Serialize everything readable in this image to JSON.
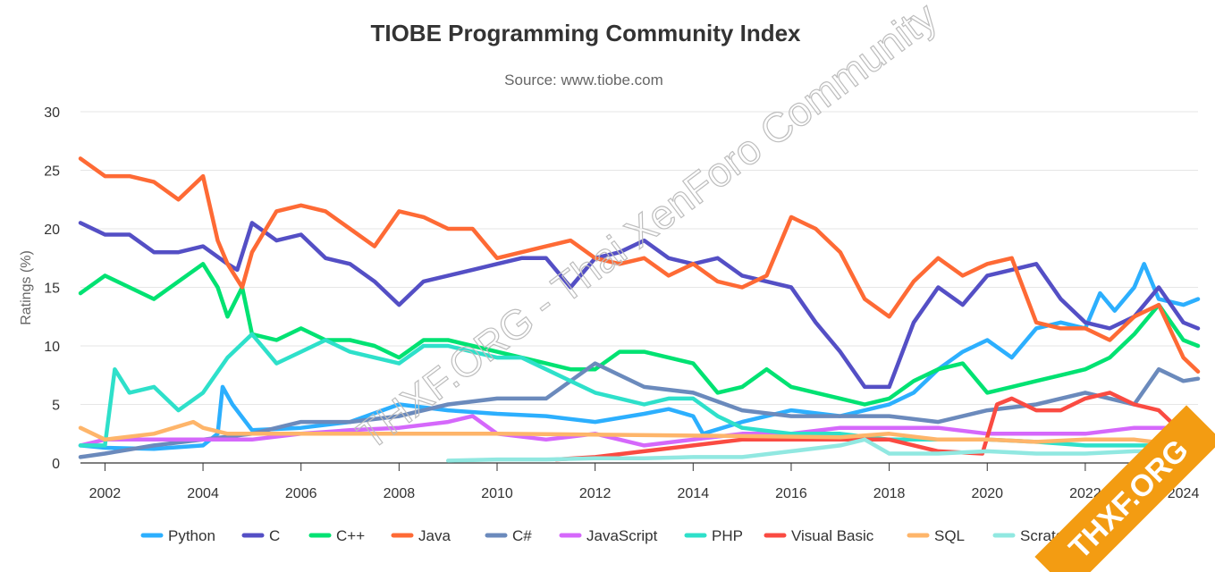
{
  "chart_data": {
    "type": "line",
    "title": "TIOBE Programming Community Index",
    "subtitle": "Source: www.tiobe.com",
    "ylabel": "Ratings (%)",
    "xlim": [
      2001.5,
      2024.3
    ],
    "ylim": [
      0,
      30
    ],
    "y_ticks": [
      0,
      5,
      10,
      15,
      20,
      25,
      30
    ],
    "x_ticks": [
      2002,
      2004,
      2006,
      2008,
      2010,
      2012,
      2014,
      2016,
      2018,
      2020,
      2022,
      2024
    ],
    "grid": true,
    "legend_position": "bottom",
    "series": [
      {
        "name": "Python",
        "color": "#2caffe",
        "x": [
          2001.5,
          2002,
          2003,
          2004,
          2004.3,
          2004.4,
          2004.6,
          2005,
          2006,
          2007,
          2008,
          2009,
          2010,
          2011,
          2012,
          2013,
          2013.5,
          2014,
          2014.2,
          2015,
          2016,
          2017,
          2017.5,
          2018,
          2018.5,
          2019,
          2019.5,
          2020,
          2020.5,
          2021,
          2021.5,
          2022,
          2022.3,
          2022.6,
          2023,
          2023.2,
          2023.5,
          2024,
          2024.3
        ],
        "y": [
          1.5,
          1.3,
          1.2,
          1.5,
          2.5,
          6.5,
          5.0,
          2.8,
          3.0,
          3.5,
          5.0,
          4.5,
          4.2,
          4.0,
          3.5,
          4.2,
          4.6,
          4.0,
          2.5,
          3.5,
          4.5,
          4.0,
          4.5,
          5.0,
          6.0,
          8.0,
          9.5,
          10.5,
          9.0,
          11.5,
          12.0,
          11.5,
          14.5,
          13.0,
          15.0,
          17.0,
          14.0,
          13.5,
          14.0
        ]
      },
      {
        "name": "C",
        "color": "#544fc5",
        "x": [
          2001.5,
          2002,
          2002.5,
          2003,
          2003.5,
          2004,
          2004.5,
          2004.7,
          2005,
          2005.5,
          2006,
          2006.5,
          2007,
          2007.5,
          2008,
          2008.5,
          2009,
          2009.5,
          2010,
          2010.5,
          2011,
          2011.5,
          2012,
          2012.5,
          2013,
          2013.5,
          2014,
          2014.5,
          2015,
          2015.5,
          2016,
          2016.5,
          2017,
          2017.5,
          2018,
          2018.5,
          2019,
          2019.5,
          2020,
          2020.5,
          2021,
          2021.5,
          2022,
          2022.5,
          2023,
          2023.5,
          2024,
          2024.3
        ],
        "y": [
          20.5,
          19.5,
          19.5,
          18.0,
          18.0,
          18.5,
          17.0,
          16.5,
          20.5,
          19.0,
          19.5,
          17.5,
          17.0,
          15.5,
          13.5,
          15.5,
          16.0,
          16.5,
          17.0,
          17.5,
          17.5,
          15.0,
          17.5,
          18.0,
          19.0,
          17.5,
          17.0,
          17.5,
          16.0,
          15.5,
          15.0,
          12.0,
          9.5,
          6.5,
          6.5,
          12.0,
          15.0,
          13.5,
          16.0,
          16.5,
          17.0,
          14.0,
          12.0,
          11.5,
          12.5,
          15.0,
          12.0,
          11.5
        ]
      },
      {
        "name": "C++",
        "color": "#00e272",
        "x": [
          2001.5,
          2002,
          2002.5,
          2003,
          2003.5,
          2004,
          2004.3,
          2004.5,
          2004.8,
          2005,
          2005.5,
          2006,
          2006.5,
          2007,
          2007.5,
          2008,
          2008.5,
          2009,
          2009.5,
          2010,
          2010.5,
          2011,
          2011.5,
          2012,
          2012.5,
          2013,
          2013.5,
          2014,
          2014.5,
          2015,
          2015.5,
          2016,
          2016.5,
          2017,
          2017.5,
          2018,
          2018.5,
          2019,
          2019.5,
          2020,
          2020.5,
          2021,
          2021.5,
          2022,
          2022.5,
          2023,
          2023.5,
          2024,
          2024.3
        ],
        "y": [
          14.5,
          16.0,
          15.0,
          14.0,
          15.5,
          17.0,
          15.0,
          12.5,
          15.0,
          11.0,
          10.5,
          11.5,
          10.5,
          10.5,
          10.0,
          9.0,
          10.5,
          10.5,
          10.0,
          9.5,
          9.0,
          8.5,
          8.0,
          8.0,
          9.5,
          9.5,
          9.0,
          8.5,
          6.0,
          6.5,
          8.0,
          6.5,
          6.0,
          5.5,
          5.0,
          5.5,
          7.0,
          8.0,
          8.5,
          6.0,
          6.5,
          7.0,
          7.5,
          8.0,
          9.0,
          11.0,
          13.5,
          10.5,
          10.0
        ]
      },
      {
        "name": "Java",
        "color": "#fe6a35",
        "x": [
          2001.5,
          2002,
          2002.5,
          2003,
          2003.5,
          2004,
          2004.3,
          2004.5,
          2004.8,
          2005,
          2005.5,
          2006,
          2006.5,
          2007,
          2007.5,
          2008,
          2008.5,
          2009,
          2009.5,
          2010,
          2010.5,
          2011,
          2011.5,
          2012,
          2012.5,
          2013,
          2013.5,
          2014,
          2014.5,
          2015,
          2015.5,
          2016,
          2016.5,
          2017,
          2017.5,
          2018,
          2018.5,
          2019,
          2019.5,
          2020,
          2020.5,
          2021,
          2021.5,
          2022,
          2022.5,
          2023,
          2023.5,
          2024,
          2024.3
        ],
        "y": [
          26.0,
          24.5,
          24.5,
          24.0,
          22.5,
          24.5,
          19.0,
          17.0,
          15.0,
          18.0,
          21.5,
          22.0,
          21.5,
          20.0,
          18.5,
          21.5,
          21.0,
          20.0,
          20.0,
          17.5,
          18.0,
          18.5,
          19.0,
          17.5,
          17.0,
          17.5,
          16.0,
          17.0,
          15.5,
          15.0,
          16.0,
          21.0,
          20.0,
          18.0,
          14.0,
          12.5,
          15.5,
          17.5,
          16.0,
          17.0,
          17.5,
          12.0,
          11.5,
          11.5,
          10.5,
          12.5,
          13.5,
          9.0,
          7.8
        ]
      },
      {
        "name": "C#",
        "color": "#6b8abc",
        "x": [
          2001.5,
          2002,
          2003,
          2004,
          2005,
          2006,
          2007,
          2008,
          2009,
          2010,
          2011,
          2011.5,
          2012,
          2013,
          2014,
          2015,
          2016,
          2017,
          2018,
          2019,
          2020,
          2021,
          2022,
          2023,
          2023.5,
          2024,
          2024.3
        ],
        "y": [
          0.5,
          0.8,
          1.5,
          2.0,
          2.5,
          3.5,
          3.5,
          4.0,
          5.0,
          5.5,
          5.5,
          7.0,
          8.5,
          6.5,
          6.0,
          4.5,
          4.0,
          4.0,
          4.0,
          3.5,
          4.5,
          5.0,
          6.0,
          5.0,
          8.0,
          7.0,
          7.2
        ]
      },
      {
        "name": "JavaScript",
        "color": "#d568fb",
        "x": [
          2001.5,
          2002,
          2003,
          2004,
          2005,
          2006,
          2007,
          2008,
          2009,
          2009.5,
          2010,
          2011,
          2012,
          2013,
          2014,
          2015,
          2016,
          2017,
          2018,
          2019,
          2020,
          2021,
          2022,
          2023,
          2024,
          2024.3
        ],
        "y": [
          1.5,
          2.0,
          2.0,
          2.0,
          2.0,
          2.5,
          2.8,
          3.0,
          3.5,
          4.0,
          2.5,
          2.0,
          2.5,
          1.5,
          2.0,
          2.5,
          2.5,
          3.0,
          3.0,
          3.0,
          2.5,
          2.5,
          2.5,
          3.0,
          3.0,
          3.2
        ]
      },
      {
        "name": "PHP",
        "color": "#2ee0ca",
        "x": [
          2001.5,
          2002,
          2002.2,
          2002.5,
          2003,
          2003.5,
          2004,
          2004.5,
          2005,
          2005.5,
          2006,
          2006.5,
          2007,
          2007.5,
          2008,
          2008.5,
          2009,
          2009.5,
          2010,
          2010.5,
          2011,
          2011.5,
          2012,
          2012.5,
          2013,
          2013.5,
          2014,
          2014.5,
          2015,
          2016,
          2017,
          2018,
          2019,
          2020,
          2021,
          2022,
          2023,
          2024,
          2024.3
        ],
        "y": [
          1.5,
          1.5,
          8.0,
          6.0,
          6.5,
          4.5,
          6.0,
          9.0,
          11.0,
          8.5,
          9.5,
          10.5,
          9.5,
          9.0,
          8.5,
          10.0,
          10.0,
          9.5,
          9.0,
          9.0,
          8.0,
          7.0,
          6.0,
          5.5,
          5.0,
          5.5,
          5.5,
          4.0,
          3.0,
          2.5,
          2.5,
          2.0,
          2.0,
          2.0,
          1.8,
          1.5,
          1.5,
          1.5,
          1.5
        ]
      },
      {
        "name": "Visual Basic",
        "color": "#fa4b42",
        "x": [
          2011.2,
          2012,
          2013,
          2014,
          2015,
          2016,
          2017,
          2018,
          2019,
          2019.9,
          2020.2,
          2020.5,
          2021,
          2021.5,
          2022,
          2022.5,
          2023,
          2023.5,
          2024
        ],
        "y": [
          0.3,
          0.5,
          1.0,
          1.5,
          2.0,
          2.0,
          2.0,
          2.0,
          1.0,
          0.8,
          5.0,
          5.5,
          4.5,
          4.5,
          5.5,
          6.0,
          5.0,
          4.5,
          2.5
        ]
      },
      {
        "name": "SQL",
        "color": "#feb56a",
        "x": [
          2001.5,
          2002,
          2003,
          2003.8,
          2004,
          2004.5,
          2005,
          2010,
          2015,
          2017,
          2018,
          2019,
          2020,
          2021,
          2022,
          2023,
          2024
        ],
        "y": [
          3.0,
          2.0,
          2.5,
          3.5,
          3.0,
          2.5,
          2.5,
          2.5,
          2.3,
          2.2,
          2.5,
          2.0,
          2.0,
          1.8,
          2.0,
          2.0,
          1.5
        ]
      },
      {
        "name": "Scratch",
        "color": "#91e8e1",
        "x": [
          2009,
          2010,
          2011,
          2012,
          2013,
          2014,
          2015,
          2016,
          2017,
          2017.5,
          2018,
          2019,
          2020,
          2021,
          2022,
          2023,
          2024
        ],
        "y": [
          0.2,
          0.3,
          0.3,
          0.4,
          0.4,
          0.5,
          0.5,
          1.0,
          1.5,
          2.0,
          0.8,
          0.8,
          1.0,
          0.8,
          0.8,
          1.0,
          1.0
        ]
      }
    ]
  },
  "watermark": "THXF.ORG - Thai XenForo Community",
  "badge": "THXF.ORG"
}
